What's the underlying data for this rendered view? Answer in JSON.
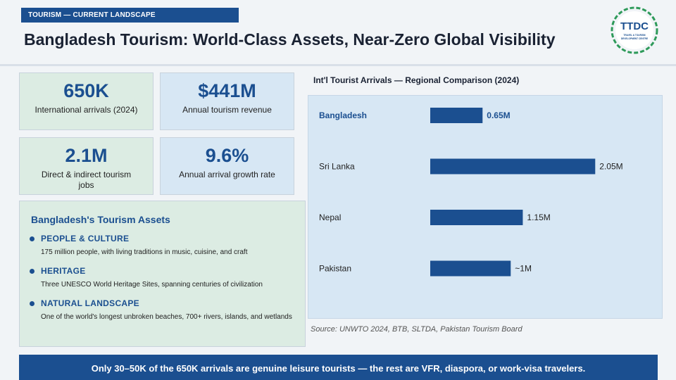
{
  "header": {
    "tag": "TOURISM — CURRENT LANDSCAPE",
    "title": "Bangladesh Tourism: World-Class Assets, Near-Zero Global Visibility",
    "logo": {
      "text": "TTDC",
      "subtext": "TRAVEL & TOURISM DEVELOPMENT CENTRE"
    }
  },
  "stats": [
    {
      "value": "650K",
      "label": "International arrivals (2024)"
    },
    {
      "value": "$441M",
      "label": "Annual tourism revenue"
    },
    {
      "value": "2.1M",
      "label": "Direct & indirect tourism jobs"
    },
    {
      "value": "9.6%",
      "label": "Annual arrival growth rate"
    }
  ],
  "assets": {
    "title": "Bangladesh's Tourism Assets",
    "items": [
      {
        "name": "PEOPLE & CULTURE",
        "desc": "175 million people, with living traditions in music, cuisine, and craft"
      },
      {
        "name": "HERITAGE",
        "desc": "Three UNESCO World Heritage Sites, spanning centuries of civilization"
      },
      {
        "name": "NATURAL LANDSCAPE",
        "desc": "One of the world's longest unbroken beaches, 700+ rivers, islands, and wetlands"
      }
    ]
  },
  "chart_data": {
    "type": "bar",
    "title": "Int'l Tourist Arrivals — Regional Comparison (2024)",
    "categories": [
      "Bangladesh",
      "Sri Lanka",
      "Nepal",
      "Pakistan"
    ],
    "values": [
      0.65,
      2.05,
      1.15,
      1.0
    ],
    "value_labels": [
      "0.65M",
      "2.05M",
      "1.15M",
      "~1M"
    ],
    "highlight_category": "Bangladesh",
    "source": "Source: UNWTO 2024, BTB, SLTDA, Pakistan Tourism Board"
  },
  "footer": {
    "text": "Only 30–50K of the 650K arrivals are genuine leisure tourists — the rest are VFR, diaspora, or work-visa travelers."
  },
  "colors": {
    "accent": "#1b4f90",
    "stat_green": "#dcece3",
    "stat_blue": "#d7e7f4",
    "background": "#f1f4f7"
  }
}
